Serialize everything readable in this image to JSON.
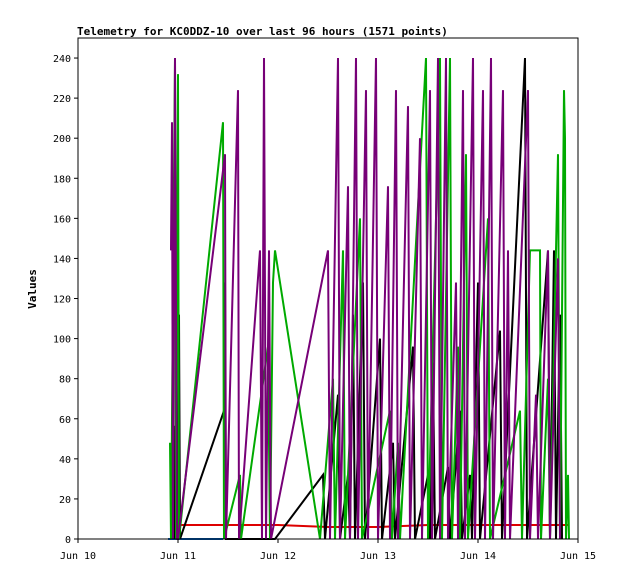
{
  "chart_data": {
    "type": "line",
    "title": "Telemetry for KC0DDZ-10 over last 96 hours (1571 points)",
    "xlabel": "",
    "ylabel": "Values",
    "xlim": [
      "Jun 10",
      "Jun 15"
    ],
    "ylim": [
      0,
      250
    ],
    "x_ticks": [
      "Jun 10",
      "Jun 11",
      "Jun 12",
      "Jun 13",
      "Jun 14",
      "Jun 15"
    ],
    "y_ticks": [
      0,
      20,
      40,
      60,
      80,
      100,
      120,
      140,
      160,
      180,
      200,
      220,
      240
    ],
    "grid": false,
    "legend": "none",
    "x_unit": "days from Jun 10",
    "series": [
      {
        "color": "#dd0000",
        "points": [
          [
            0.92,
            7
          ],
          [
            1.0,
            7
          ],
          [
            1.5,
            7
          ],
          [
            2.0,
            7
          ],
          [
            2.5,
            6
          ],
          [
            3.0,
            6
          ],
          [
            3.5,
            7
          ],
          [
            4.0,
            7
          ],
          [
            4.5,
            7
          ],
          [
            4.9,
            7
          ]
        ]
      },
      {
        "color": "#0066cc",
        "points": [
          [
            0.9,
            0
          ],
          [
            1.2,
            0
          ],
          [
            1.45,
            0
          ]
        ]
      },
      {
        "color": "#000000",
        "points": [
          [
            0.96,
            0
          ],
          [
            0.96,
            56
          ],
          [
            0.99,
            56
          ],
          [
            0.99,
            0
          ],
          [
            1.01,
            112
          ],
          [
            1.02,
            0
          ],
          [
            1.46,
            64
          ],
          [
            1.47,
            128
          ],
          [
            1.48,
            0
          ],
          [
            1.97,
            0
          ],
          [
            2.45,
            32
          ],
          [
            2.47,
            0
          ],
          [
            2.6,
            72
          ],
          [
            2.62,
            0
          ],
          [
            2.7,
            32
          ],
          [
            2.72,
            0
          ],
          [
            2.75,
            112
          ],
          [
            2.77,
            0
          ],
          [
            2.85,
            128
          ],
          [
            2.87,
            0
          ],
          [
            3.02,
            100
          ],
          [
            3.04,
            0
          ],
          [
            3.15,
            48
          ],
          [
            3.17,
            0
          ],
          [
            3.35,
            96
          ],
          [
            3.37,
            0
          ],
          [
            3.5,
            32
          ],
          [
            3.52,
            0
          ],
          [
            3.55,
            88
          ],
          [
            3.57,
            0
          ],
          [
            3.7,
            36
          ],
          [
            3.72,
            0
          ],
          [
            3.82,
            64
          ],
          [
            3.84,
            0
          ],
          [
            3.92,
            32
          ],
          [
            3.94,
            0
          ],
          [
            4.0,
            128
          ],
          [
            4.02,
            0
          ],
          [
            4.22,
            104
          ],
          [
            4.24,
            0
          ],
          [
            4.47,
            240
          ],
          [
            4.49,
            0
          ],
          [
            4.7,
            144
          ],
          [
            4.72,
            0
          ],
          [
            4.76,
            144
          ],
          [
            4.78,
            0
          ],
          [
            4.82,
            112
          ],
          [
            4.84,
            0
          ]
        ]
      },
      {
        "color": "#00aa00",
        "points": [
          [
            0.92,
            48
          ],
          [
            0.93,
            0
          ],
          [
            0.97,
            240
          ],
          [
            0.98,
            0
          ],
          [
            1.0,
            232
          ],
          [
            1.01,
            0
          ],
          [
            1.45,
            208
          ],
          [
            1.46,
            0
          ],
          [
            1.62,
            32
          ],
          [
            1.63,
            0
          ],
          [
            1.9,
            96
          ],
          [
            1.92,
            0
          ],
          [
            1.95,
            128
          ],
          [
            1.97,
            144
          ],
          [
            2.42,
            0
          ],
          [
            2.55,
            80
          ],
          [
            2.57,
            0
          ],
          [
            2.65,
            144
          ],
          [
            2.67,
            0
          ],
          [
            2.82,
            160
          ],
          [
            2.84,
            0
          ],
          [
            3.12,
            64
          ],
          [
            3.14,
            0
          ],
          [
            3.2,
            48
          ],
          [
            3.22,
            0
          ],
          [
            3.48,
            240
          ],
          [
            3.5,
            0
          ],
          [
            3.62,
            240
          ],
          [
            3.64,
            0
          ],
          [
            3.72,
            240
          ],
          [
            3.74,
            0
          ],
          [
            3.8,
            96
          ],
          [
            3.82,
            0
          ],
          [
            3.88,
            192
          ],
          [
            3.9,
            0
          ],
          [
            4.1,
            160
          ],
          [
            4.12,
            0
          ],
          [
            4.42,
            64
          ],
          [
            4.44,
            0
          ],
          [
            4.52,
            144
          ],
          [
            4.62,
            144
          ],
          [
            4.63,
            0
          ],
          [
            4.7,
            80
          ],
          [
            4.72,
            0
          ],
          [
            4.8,
            192
          ],
          [
            4.82,
            0
          ],
          [
            4.86,
            224
          ],
          [
            4.87,
            200
          ],
          [
            4.88,
            0
          ],
          [
            4.9,
            32
          ],
          [
            4.91,
            0
          ]
        ]
      },
      {
        "color": "#770077",
        "points": [
          [
            0.93,
            144
          ],
          [
            0.94,
            208
          ],
          [
            0.95,
            0
          ],
          [
            0.97,
            240
          ],
          [
            0.99,
            0
          ],
          [
            1.0,
            0
          ],
          [
            1.47,
            192
          ],
          [
            1.48,
            0
          ],
          [
            1.6,
            224
          ],
          [
            1.61,
            0
          ],
          [
            1.82,
            144
          ],
          [
            1.84,
            0
          ],
          [
            1.86,
            240
          ],
          [
            1.88,
            0
          ],
          [
            1.91,
            144
          ],
          [
            1.93,
            0
          ],
          [
            2.5,
            144
          ],
          [
            2.52,
            0
          ],
          [
            2.6,
            240
          ],
          [
            2.62,
            0
          ],
          [
            2.7,
            176
          ],
          [
            2.72,
            0
          ],
          [
            2.78,
            240
          ],
          [
            2.8,
            0
          ],
          [
            2.88,
            224
          ],
          [
            2.9,
            0
          ],
          [
            2.98,
            240
          ],
          [
            3.0,
            0
          ],
          [
            3.1,
            176
          ],
          [
            3.12,
            0
          ],
          [
            3.18,
            224
          ],
          [
            3.2,
            0
          ],
          [
            3.3,
            216
          ],
          [
            3.32,
            0
          ],
          [
            3.42,
            200
          ],
          [
            3.44,
            0
          ],
          [
            3.52,
            224
          ],
          [
            3.54,
            0
          ],
          [
            3.6,
            240
          ],
          [
            3.62,
            0
          ],
          [
            3.68,
            240
          ],
          [
            3.7,
            0
          ],
          [
            3.78,
            128
          ],
          [
            3.8,
            0
          ],
          [
            3.85,
            224
          ],
          [
            3.87,
            0
          ],
          [
            3.95,
            240
          ],
          [
            3.97,
            0
          ],
          [
            4.05,
            224
          ],
          [
            4.07,
            0
          ],
          [
            4.13,
            240
          ],
          [
            4.15,
            0
          ],
          [
            4.25,
            224
          ],
          [
            4.27,
            0
          ],
          [
            4.3,
            144
          ],
          [
            4.32,
            0
          ],
          [
            4.5,
            224
          ],
          [
            4.52,
            0
          ],
          [
            4.58,
            72
          ],
          [
            4.6,
            0
          ],
          [
            4.7,
            144
          ],
          [
            4.72,
            0
          ],
          [
            4.8,
            140
          ],
          [
            4.82,
            0
          ]
        ]
      }
    ]
  }
}
